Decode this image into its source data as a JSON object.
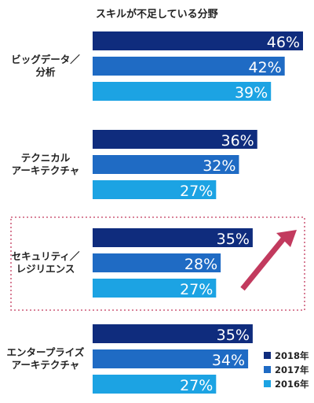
{
  "chart_data": {
    "type": "bar",
    "orientation": "horizontal",
    "title": "スキルが不足している分野",
    "categories": [
      [
        "ビッグデータ／",
        "分析"
      ],
      [
        "テクニカル",
        "アーキテクチャ"
      ],
      [
        "セキュリティ／",
        "レジリエンス"
      ],
      [
        "エンタープライズ",
        "アーキテクチャ"
      ]
    ],
    "series": [
      {
        "name": "2018年",
        "color": "#0f2c7d",
        "values": [
          46,
          36,
          35,
          35
        ]
      },
      {
        "name": "2017年",
        "color": "#1f6bc4",
        "values": [
          42,
          32,
          28,
          34
        ]
      },
      {
        "name": "2016年",
        "color": "#1ca3e3",
        "values": [
          39,
          27,
          27,
          27
        ]
      }
    ],
    "value_suffix": "%",
    "xlim": [
      0,
      46
    ],
    "legend": "bottom-right",
    "grid": false,
    "highlighted_category": "セキュリティ／レジリエンス",
    "highlight_color": "#c23a5e"
  }
}
